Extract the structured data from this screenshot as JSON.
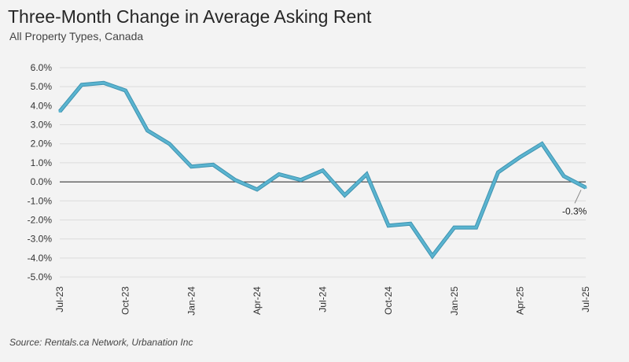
{
  "header": {
    "title": "Three-Month Change in Average Asking Rent",
    "subtitle": "All Property Types, Canada"
  },
  "footer": {
    "source": "Source: Rentals.ca Network, Urbanation Inc"
  },
  "colors": {
    "line": "#5ab4d0",
    "line_edge": "#3f93b0",
    "zero_line": "#222222",
    "grid": "#dcdcdc",
    "background": "#f3f3f3"
  },
  "chart_data": {
    "type": "line",
    "title": "Three-Month Change in Average Asking Rent",
    "subtitle": "All Property Types, Canada",
    "xlabel": "",
    "ylabel": "",
    "ylim": [
      -5.0,
      6.0
    ],
    "ytick_values": [
      6,
      5,
      4,
      3,
      2,
      1,
      0,
      -1,
      -2,
      -3,
      -4,
      -5
    ],
    "yticks": [
      "6.0%",
      "5.0%",
      "4.0%",
      "3.0%",
      "2.0%",
      "1.0%",
      "0.0%",
      "-1.0%",
      "-2.0%",
      "-3.0%",
      "-4.0%",
      "-5.0%"
    ],
    "x": [
      "Jul-23",
      "Aug-23",
      "Sep-23",
      "Oct-23",
      "Nov-23",
      "Dec-23",
      "Jan-24",
      "Feb-24",
      "Mar-24",
      "Apr-24",
      "May-24",
      "Jun-24",
      "Jul-24",
      "Aug-24",
      "Sep-24",
      "Oct-24",
      "Nov-24",
      "Dec-24",
      "Jan-25",
      "Feb-25",
      "Mar-25",
      "Apr-25",
      "May-25",
      "Jun-25",
      "Jul-25"
    ],
    "xticks": [
      "Jul-23",
      "Oct-23",
      "Jan-24",
      "Apr-24",
      "Jul-24",
      "Oct-24",
      "Jan-25",
      "Apr-25",
      "Jul-25"
    ],
    "series": [
      {
        "values": [
          3.7,
          5.1,
          5.2,
          4.8,
          2.7,
          2.0,
          0.8,
          0.9,
          0.1,
          -0.4,
          0.4,
          0.1,
          0.6,
          -0.7,
          0.4,
          -2.3,
          -2.2,
          -3.9,
          -2.4,
          -2.4,
          0.5,
          1.3,
          2.0,
          0.3,
          -0.3
        ]
      }
    ],
    "annotation": {
      "x": "Jul-25",
      "y": -0.3,
      "label": "-0.3%"
    },
    "grid": true,
    "legend": "none"
  }
}
